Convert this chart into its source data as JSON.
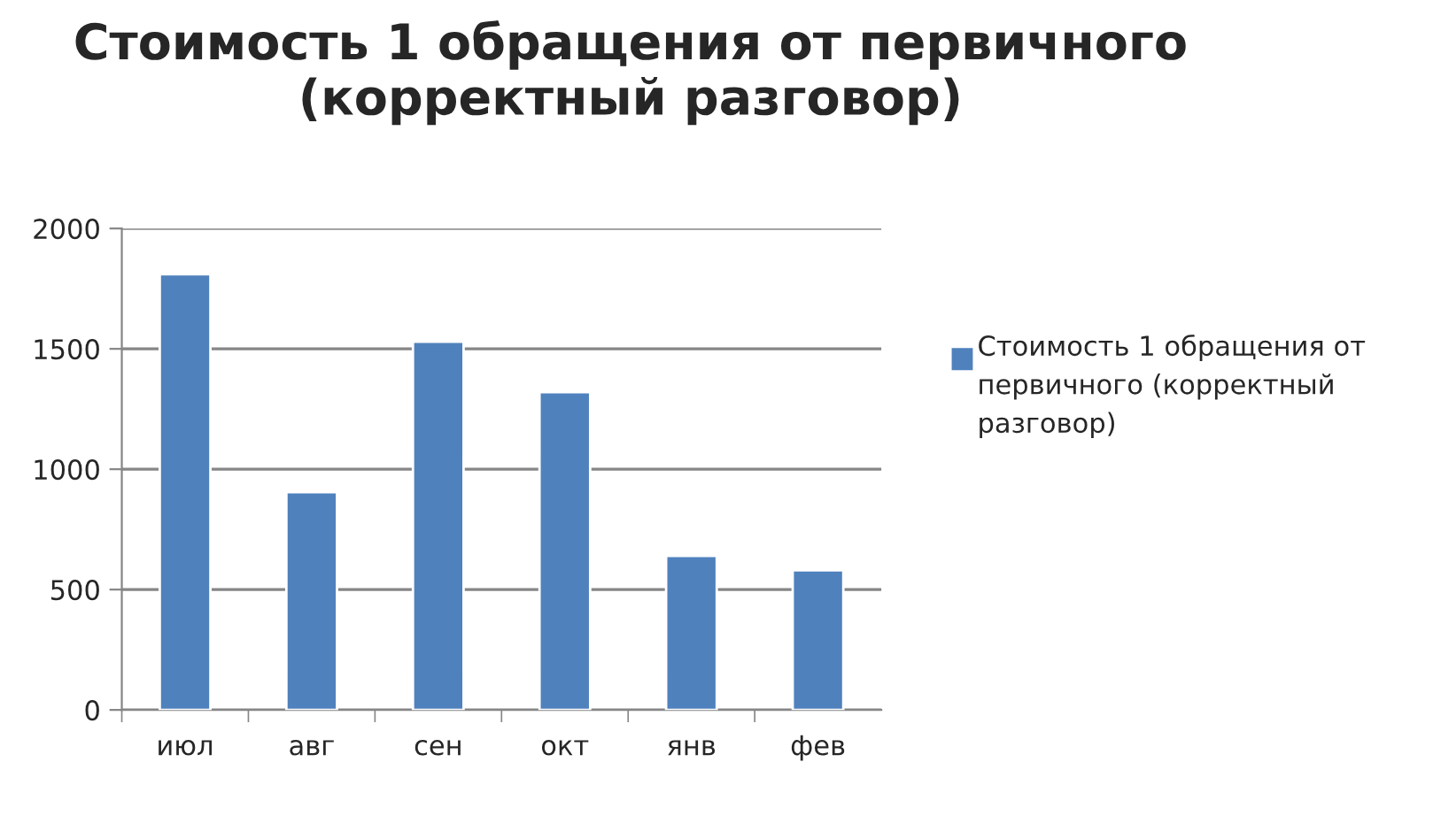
{
  "chart_data": {
    "type": "bar",
    "title": "Стоимость 1 обращения от первичного (корректный разговор)",
    "categories": [
      "июл",
      "авг",
      "сен",
      "окт",
      "янв",
      "фев"
    ],
    "series": [
      {
        "name": "Стоимость 1 обращения от первичного (корректный разговор)",
        "color": "#4f81bd",
        "values": [
          1810,
          905,
          1530,
          1320,
          640,
          580
        ]
      }
    ],
    "ylim": [
      0,
      2000
    ],
    "yticks": [
      0,
      500,
      1000,
      1500,
      2000
    ],
    "grid": "y",
    "legend": "right"
  }
}
